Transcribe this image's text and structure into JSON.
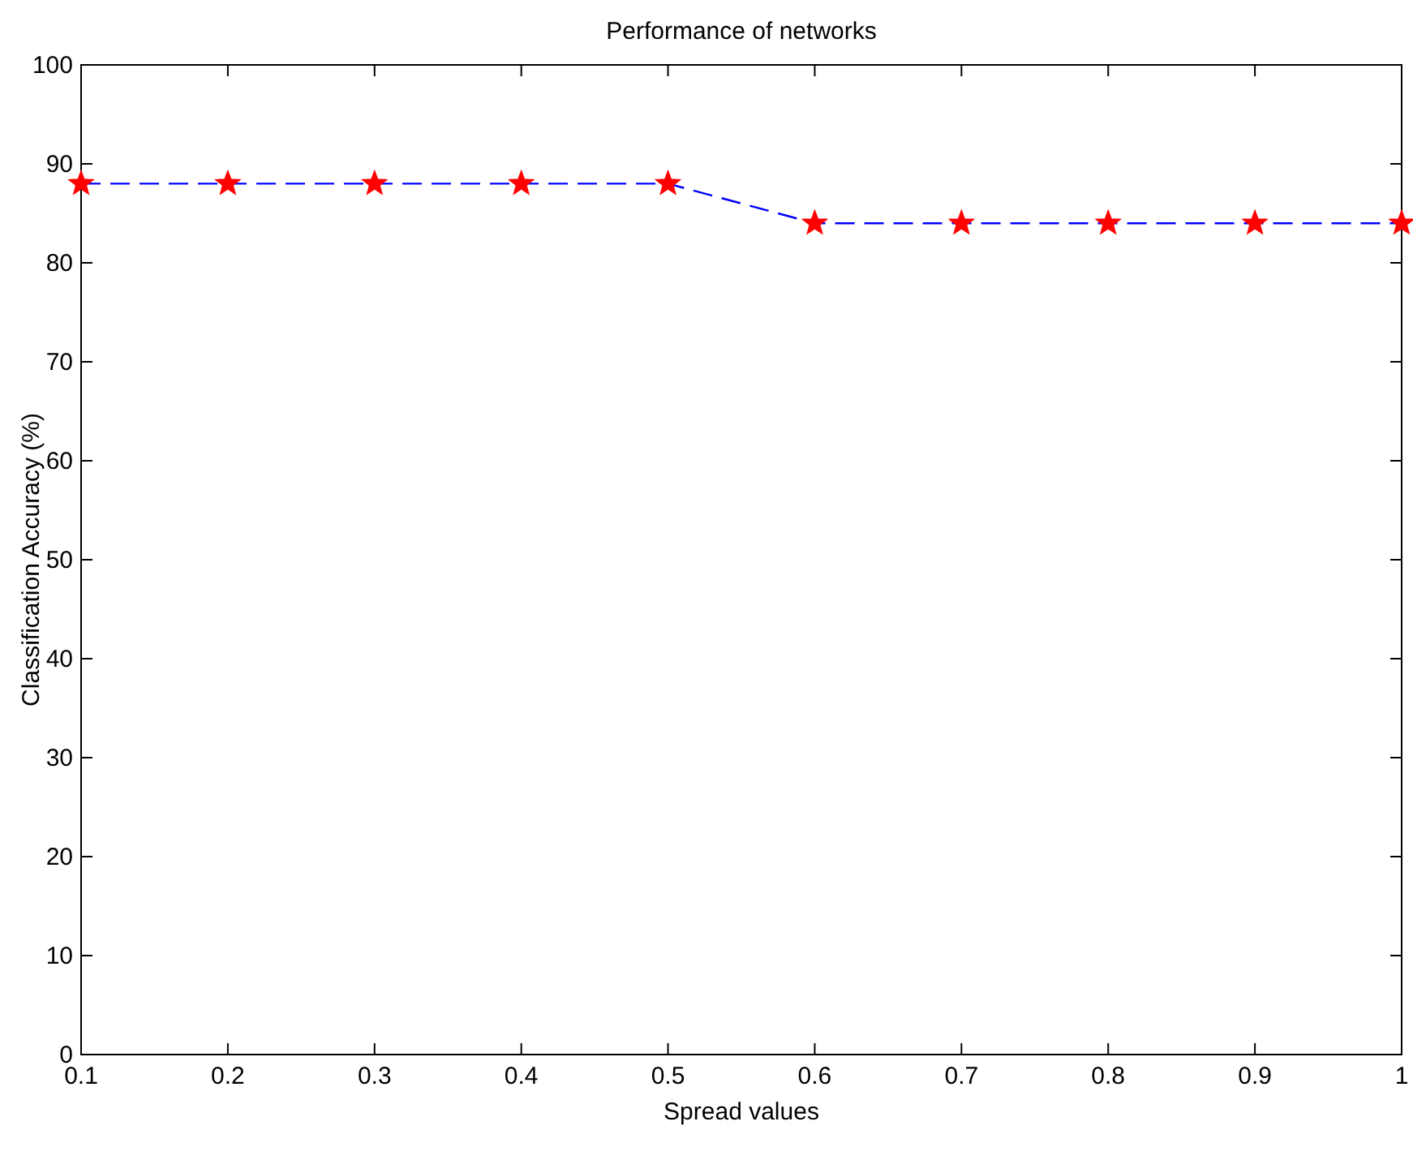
{
  "chart_data": {
    "type": "line",
    "title": "Performance of networks",
    "xlabel": "Spread values",
    "ylabel": "Classification Accuracy (%)",
    "x": [
      0.1,
      0.2,
      0.3,
      0.4,
      0.5,
      0.6,
      0.7,
      0.8,
      0.9,
      1
    ],
    "series": [
      {
        "type": "line",
        "color": "#0000ff",
        "line_style": "dashed",
        "marker": "none",
        "values": [
          88,
          88,
          88,
          88,
          88,
          84,
          84,
          84,
          84,
          84
        ]
      },
      {
        "type": "scatter",
        "color": "#ff0000",
        "marker": "star",
        "values": [
          88,
          88,
          88,
          88,
          88,
          84,
          84,
          84,
          84,
          84
        ]
      }
    ],
    "xlim": [
      0.1,
      1
    ],
    "xticks": [
      0.1,
      0.2,
      0.3,
      0.4,
      0.5,
      0.6,
      0.7,
      0.8,
      0.9,
      1
    ],
    "ylim": [
      0,
      100
    ],
    "yticks": [
      0,
      10,
      20,
      30,
      40,
      50,
      60,
      70,
      80,
      90,
      100
    ]
  }
}
